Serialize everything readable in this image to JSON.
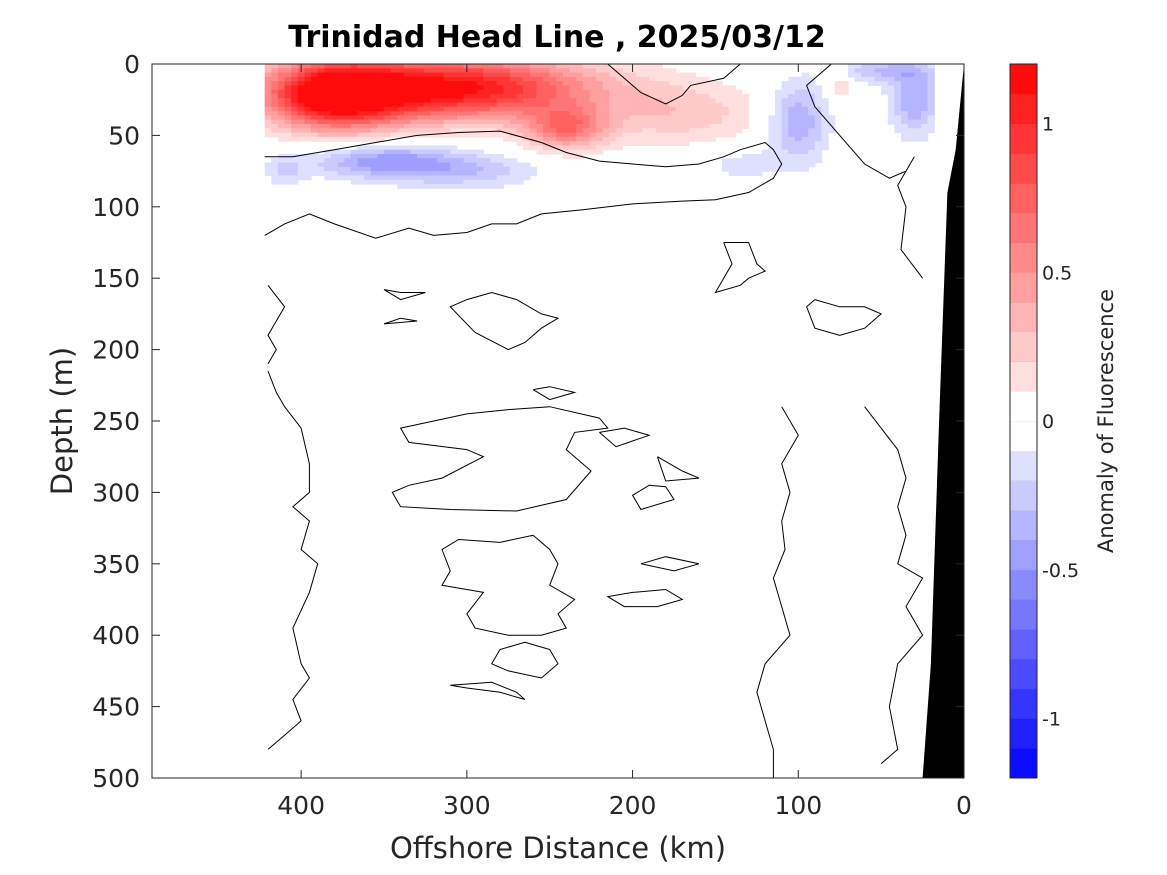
{
  "chart_data": {
    "type": "heatmap",
    "title": "Trinidad Head Line , 2025/03/12",
    "xlabel": "Offshore Distance (km)",
    "ylabel": "Depth (m)",
    "xlim": [
      490,
      0
    ],
    "x_reversed": true,
    "ylim": [
      500,
      0
    ],
    "y_reversed": true,
    "x_ticks": [
      400,
      300,
      200,
      100,
      0
    ],
    "y_ticks": [
      0,
      50,
      100,
      150,
      200,
      250,
      300,
      350,
      400,
      450,
      500
    ],
    "colorbar": {
      "label": "Anomaly of Fluorescence",
      "range": [
        -1.2,
        1.2
      ],
      "ticks": [
        -1,
        -0.5,
        0,
        0.5,
        1
      ],
      "tick_labels": [
        "-1",
        "-0.5",
        "0",
        "0.5",
        "1"
      ],
      "levels": 24,
      "colormap": "blue-white-red",
      "neg_color": "#0000ff",
      "zero_color": "#ffffff",
      "pos_color": "#ff0000"
    },
    "data_extent_x": [
      422,
      20
    ],
    "anomaly_blobs": [
      {
        "x_center": 310,
        "depth_center": 17,
        "x_halfwidth": 85,
        "depth_halfwidth": 22,
        "value": 1.15
      },
      {
        "x_center": 380,
        "depth_center": 22,
        "x_halfwidth": 40,
        "depth_halfwidth": 24,
        "value": 1.05
      },
      {
        "x_center": 240,
        "depth_center": 45,
        "x_halfwidth": 25,
        "depth_halfwidth": 15,
        "value": 0.6
      },
      {
        "x_center": 170,
        "depth_center": 35,
        "x_halfwidth": 50,
        "depth_halfwidth": 22,
        "value": 0.25
      },
      {
        "x_center": 350,
        "depth_center": 68,
        "x_halfwidth": 45,
        "depth_halfwidth": 12,
        "value": -0.45
      },
      {
        "x_center": 300,
        "depth_center": 75,
        "x_halfwidth": 45,
        "depth_halfwidth": 12,
        "value": -0.25
      },
      {
        "x_center": 410,
        "depth_center": 75,
        "x_halfwidth": 12,
        "depth_halfwidth": 10,
        "value": -0.2
      },
      {
        "x_center": 100,
        "depth_center": 40,
        "x_halfwidth": 18,
        "depth_halfwidth": 28,
        "value": -0.4
      },
      {
        "x_center": 30,
        "depth_center": 25,
        "x_halfwidth": 15,
        "depth_halfwidth": 25,
        "value": -0.4
      },
      {
        "x_center": 50,
        "depth_center": 5,
        "x_halfwidth": 25,
        "depth_halfwidth": 8,
        "value": -0.3
      },
      {
        "x_center": 75,
        "depth_center": 15,
        "x_halfwidth": 8,
        "depth_halfwidth": 10,
        "value": 0.2
      },
      {
        "x_center": 135,
        "depth_center": 70,
        "x_halfwidth": 25,
        "depth_halfwidth": 12,
        "value": -0.15
      }
    ],
    "bathymetry": {
      "label": "seafloor",
      "color": "#000000",
      "points": [
        [
          0,
          0
        ],
        [
          5,
          60
        ],
        [
          10,
          90
        ],
        [
          15,
          250
        ],
        [
          20,
          420
        ],
        [
          25,
          500
        ]
      ]
    },
    "zero_contours": [
      [
        [
          422,
          65
        ],
        [
          405,
          65
        ],
        [
          380,
          60
        ],
        [
          355,
          55
        ],
        [
          330,
          50
        ],
        [
          305,
          48
        ],
        [
          280,
          47
        ],
        [
          255,
          55
        ],
        [
          240,
          62
        ],
        [
          220,
          68
        ],
        [
          200,
          70
        ],
        [
          180,
          72
        ],
        [
          160,
          70
        ],
        [
          145,
          65
        ],
        [
          135,
          60
        ],
        [
          120,
          55
        ],
        [
          115,
          60
        ],
        [
          110,
          70
        ],
        [
          115,
          80
        ],
        [
          130,
          90
        ],
        [
          150,
          95
        ],
        [
          170,
          96
        ],
        [
          200,
          98
        ],
        [
          230,
          102
        ],
        [
          255,
          105
        ],
        [
          270,
          112
        ],
        [
          285,
          112
        ],
        [
          300,
          118
        ],
        [
          320,
          120
        ],
        [
          335,
          115
        ],
        [
          355,
          122
        ],
        [
          380,
          112
        ],
        [
          395,
          105
        ],
        [
          410,
          112
        ],
        [
          422,
          120
        ]
      ],
      [
        [
          135,
          0
        ],
        [
          145,
          10
        ],
        [
          165,
          15
        ],
        [
          170,
          22
        ],
        [
          180,
          28
        ],
        [
          195,
          20
        ],
        [
          205,
          10
        ],
        [
          215,
          0
        ]
      ],
      [
        [
          80,
          0
        ],
        [
          90,
          10
        ],
        [
          95,
          15
        ],
        [
          90,
          30
        ],
        [
          75,
          50
        ],
        [
          60,
          70
        ],
        [
          45,
          80
        ],
        [
          35,
          75
        ],
        [
          30,
          65
        ],
        [
          40,
          85
        ],
        [
          35,
          100
        ],
        [
          38,
          130
        ],
        [
          25,
          150
        ]
      ],
      [
        [
          145,
          125
        ],
        [
          130,
          125
        ],
        [
          125,
          140
        ],
        [
          120,
          145
        ],
        [
          130,
          150
        ],
        [
          135,
          155
        ],
        [
          150,
          160
        ],
        [
          145,
          150
        ],
        [
          140,
          140
        ],
        [
          145,
          125
        ]
      ],
      [
        [
          90,
          165
        ],
        [
          75,
          170
        ],
        [
          60,
          170
        ],
        [
          50,
          175
        ],
        [
          60,
          185
        ],
        [
          75,
          190
        ],
        [
          90,
          185
        ],
        [
          95,
          170
        ],
        [
          90,
          165
        ]
      ],
      [
        [
          300,
          165
        ],
        [
          285,
          160
        ],
        [
          270,
          165
        ],
        [
          255,
          175
        ],
        [
          245,
          178
        ],
        [
          255,
          185
        ],
        [
          265,
          195
        ],
        [
          275,
          200
        ],
        [
          295,
          188
        ],
        [
          310,
          170
        ],
        [
          300,
          165
        ]
      ],
      [
        [
          340,
          160
        ],
        [
          325,
          160
        ],
        [
          340,
          165
        ],
        [
          350,
          158
        ],
        [
          340,
          160
        ]
      ],
      [
        [
          340,
          178
        ],
        [
          330,
          180
        ],
        [
          350,
          182
        ],
        [
          340,
          178
        ]
      ],
      [
        [
          260,
          228
        ],
        [
          250,
          226
        ],
        [
          235,
          230
        ],
        [
          250,
          235
        ],
        [
          260,
          228
        ]
      ],
      [
        [
          420,
          155
        ],
        [
          410,
          170
        ],
        [
          420,
          190
        ],
        [
          415,
          200
        ],
        [
          420,
          210
        ]
      ],
      [
        [
          420,
          215
        ],
        [
          415,
          230
        ],
        [
          410,
          240
        ],
        [
          400,
          255
        ],
        [
          395,
          280
        ],
        [
          395,
          300
        ],
        [
          405,
          310
        ],
        [
          395,
          320
        ],
        [
          400,
          340
        ],
        [
          390,
          350
        ],
        [
          395,
          370
        ],
        [
          405,
          395
        ],
        [
          400,
          420
        ],
        [
          395,
          430
        ],
        [
          405,
          445
        ],
        [
          400,
          460
        ],
        [
          410,
          470
        ],
        [
          420,
          480
        ]
      ],
      [
        [
          275,
          242
        ],
        [
          300,
          245
        ],
        [
          320,
          250
        ],
        [
          340,
          255
        ],
        [
          335,
          265
        ],
        [
          300,
          270
        ],
        [
          290,
          275
        ],
        [
          315,
          290
        ],
        [
          335,
          295
        ],
        [
          345,
          300
        ],
        [
          340,
          310
        ],
        [
          310,
          312
        ],
        [
          270,
          313
        ],
        [
          240,
          305
        ],
        [
          225,
          285
        ],
        [
          240,
          270
        ],
        [
          235,
          258
        ],
        [
          215,
          255
        ],
        [
          220,
          248
        ],
        [
          250,
          240
        ],
        [
          275,
          242
        ]
      ],
      [
        [
          220,
          258
        ],
        [
          205,
          255
        ],
        [
          190,
          260
        ],
        [
          210,
          268
        ],
        [
          220,
          258
        ]
      ],
      [
        [
          190,
          295
        ],
        [
          180,
          296
        ],
        [
          175,
          305
        ],
        [
          195,
          312
        ],
        [
          200,
          302
        ],
        [
          190,
          295
        ]
      ],
      [
        [
          260,
          330
        ],
        [
          280,
          335
        ],
        [
          305,
          333
        ],
        [
          315,
          340
        ],
        [
          310,
          355
        ],
        [
          315,
          365
        ],
        [
          290,
          370
        ],
        [
          300,
          385
        ],
        [
          295,
          395
        ],
        [
          275,
          400
        ],
        [
          255,
          400
        ],
        [
          240,
          395
        ],
        [
          245,
          385
        ],
        [
          235,
          375
        ],
        [
          250,
          365
        ],
        [
          245,
          350
        ],
        [
          250,
          340
        ],
        [
          260,
          330
        ]
      ],
      [
        [
          200,
          370
        ],
        [
          180,
          368
        ],
        [
          170,
          375
        ],
        [
          185,
          380
        ],
        [
          205,
          380
        ],
        [
          215,
          373
        ],
        [
          200,
          370
        ]
      ],
      [
        [
          250,
          410
        ],
        [
          265,
          405
        ],
        [
          280,
          410
        ],
        [
          285,
          420
        ],
        [
          275,
          425
        ],
        [
          255,
          430
        ],
        [
          245,
          420
        ],
        [
          250,
          410
        ]
      ],
      [
        [
          265,
          445
        ],
        [
          280,
          440
        ],
        [
          300,
          437
        ],
        [
          310,
          435
        ],
        [
          285,
          433
        ],
        [
          270,
          440
        ],
        [
          265,
          445
        ]
      ],
      [
        [
          185,
          275
        ],
        [
          170,
          285
        ],
        [
          160,
          290
        ],
        [
          180,
          292
        ],
        [
          185,
          275
        ]
      ],
      [
        [
          195,
          350
        ],
        [
          180,
          345
        ],
        [
          160,
          350
        ],
        [
          175,
          355
        ],
        [
          195,
          350
        ]
      ],
      [
        [
          110,
          240
        ],
        [
          100,
          260
        ],
        [
          110,
          280
        ],
        [
          105,
          300
        ],
        [
          110,
          320
        ],
        [
          108,
          340
        ],
        [
          115,
          360
        ],
        [
          110,
          380
        ],
        [
          105,
          400
        ],
        [
          120,
          420
        ],
        [
          125,
          440
        ],
        [
          120,
          460
        ],
        [
          115,
          480
        ],
        [
          115,
          500
        ]
      ],
      [
        [
          60,
          240
        ],
        [
          50,
          255
        ],
        [
          40,
          270
        ],
        [
          35,
          290
        ],
        [
          40,
          310
        ],
        [
          35,
          330
        ],
        [
          40,
          350
        ],
        [
          25,
          360
        ],
        [
          35,
          380
        ],
        [
          25,
          400
        ],
        [
          40,
          420
        ],
        [
          45,
          450
        ],
        [
          40,
          480
        ],
        [
          50,
          490
        ]
      ]
    ]
  }
}
